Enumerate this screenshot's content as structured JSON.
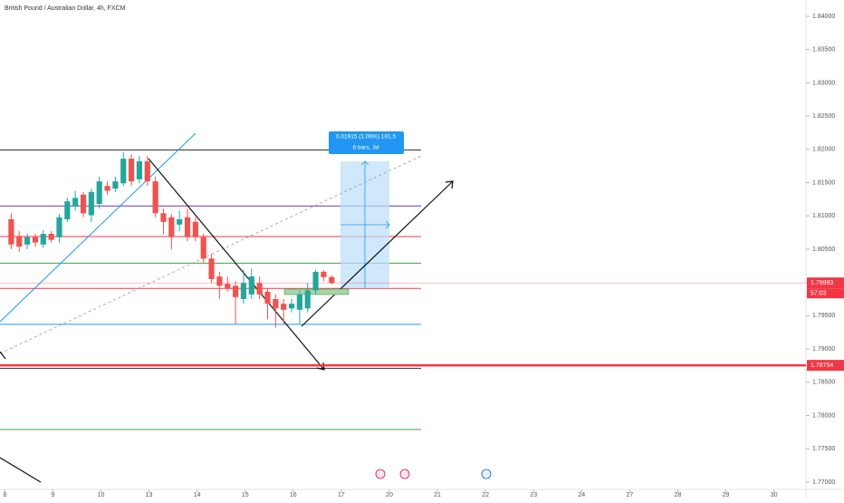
{
  "chart_data": {
    "type": "candlestick",
    "title": "British Pound / Australian Dollar, 4h, FXCM",
    "up_color": "#26a69a",
    "down_color": "#ef5350",
    "open": [
      1.8095,
      1.807,
      1.8057,
      1.8068,
      1.8057,
      1.8073,
      1.8068,
      1.8095,
      1.8114,
      1.8132,
      1.8101,
      1.8118,
      1.8145,
      1.8141,
      1.8149,
      1.8186,
      1.8155,
      1.8182,
      1.8152,
      1.8104,
      1.8098,
      1.8087,
      1.8098,
      1.8091,
      1.8068,
      1.8036,
      1.8009,
      1.7998,
      1.7995,
      1.7975,
      1.7982,
      1.7999,
      1.7986,
      1.7975,
      1.7968,
      1.7961,
      1.7959,
      1.7961,
      1.7988,
      1.8016,
      1.8008
    ],
    "high": [
      1.8104,
      1.8077,
      1.8073,
      1.8073,
      1.8079,
      1.8077,
      1.8103,
      1.8127,
      1.8138,
      1.8136,
      1.8141,
      1.8159,
      1.8152,
      1.8159,
      1.8196,
      1.8193,
      1.819,
      1.819,
      1.8159,
      1.8111,
      1.8103,
      1.8108,
      1.8111,
      1.8098,
      1.8073,
      1.8043,
      1.8016,
      1.8009,
      1.8002,
      1.8019,
      1.8021,
      1.8009,
      1.7991,
      1.7982,
      1.7975,
      1.7975,
      1.7988,
      1.7999,
      1.8019,
      1.8019,
      1.8011
    ],
    "low": [
      1.805,
      1.8046,
      1.805,
      1.8054,
      1.8052,
      1.806,
      1.806,
      1.8091,
      1.8108,
      1.8098,
      1.8091,
      1.8111,
      1.8132,
      1.8136,
      1.8145,
      1.8145,
      1.8149,
      1.8145,
      1.8098,
      1.8073,
      1.805,
      1.8077,
      1.8062,
      1.8062,
      1.803,
      1.7999,
      1.7975,
      1.7986,
      1.7937,
      1.7968,
      1.7975,
      1.7975,
      1.7945,
      1.7932,
      1.7937,
      1.7955,
      1.7937,
      1.7955,
      1.7982,
      1.8002,
      1.7997
    ],
    "close": [
      1.8057,
      1.8054,
      1.8068,
      1.806,
      1.8073,
      1.8064,
      1.8098,
      1.8122,
      1.8127,
      1.8104,
      1.8136,
      1.8152,
      1.8138,
      1.8152,
      1.8186,
      1.8152,
      1.8182,
      1.8152,
      1.8104,
      1.8091,
      1.8068,
      1.8095,
      1.8068,
      1.8068,
      1.8036,
      1.8005,
      1.7995,
      1.7991,
      1.7978,
      1.7999,
      1.8009,
      1.7982,
      1.7968,
      1.7961,
      1.7959,
      1.7968,
      1.7982,
      1.7988,
      1.8016,
      1.8008,
      1.7999
    ],
    "xlim": [
      -1.4,
      99.2
    ],
    "xticks": [
      {
        "value": -0.8,
        "label": "8"
      },
      {
        "value": 5.2,
        "label": "9"
      },
      {
        "value": 11.2,
        "label": "10"
      },
      {
        "value": 17.2,
        "label": "13"
      },
      {
        "value": 23.2,
        "label": "14"
      },
      {
        "value": 29.2,
        "label": "15"
      },
      {
        "value": 35.2,
        "label": "16"
      },
      {
        "value": 41.2,
        "label": "17"
      },
      {
        "value": 47.2,
        "label": "20"
      },
      {
        "value": 53.2,
        "label": "21"
      },
      {
        "value": 59.2,
        "label": "22"
      },
      {
        "value": 65.2,
        "label": "23"
      },
      {
        "value": 71.2,
        "label": "24"
      },
      {
        "value": 77.2,
        "label": "27"
      },
      {
        "value": 83.2,
        "label": "28"
      },
      {
        "value": 89.2,
        "label": "29"
      },
      {
        "value": 95.2,
        "label": "30"
      }
    ],
    "ylim": [
      1.7689,
      1.84245
    ],
    "yticks": [
      {
        "value": 1.84,
        "label": "1.84000"
      },
      {
        "value": 1.835,
        "label": "1.83500"
      },
      {
        "value": 1.83,
        "label": "1.83000"
      },
      {
        "value": 1.825,
        "label": "1.82500"
      },
      {
        "value": 1.82,
        "label": "1.82000"
      },
      {
        "value": 1.815,
        "label": "1.81500"
      },
      {
        "value": 1.81,
        "label": "1.81000"
      },
      {
        "value": 1.805,
        "label": "1.80500"
      },
      {
        "value": 1.8,
        "label": "1.80000"
      },
      {
        "value": 1.795,
        "label": "1.79500"
      },
      {
        "value": 1.79,
        "label": "1.79000"
      },
      {
        "value": 1.785,
        "label": "1.78500"
      },
      {
        "value": 1.78,
        "label": "1.78000"
      },
      {
        "value": 1.775,
        "label": "1.77500"
      },
      {
        "value": 1.77,
        "label": "1.77000"
      }
    ],
    "levels": [
      {
        "price": 1.8199,
        "color": "#333333"
      },
      {
        "price": 1.8115,
        "color": "#673ab7"
      },
      {
        "price": 1.8069,
        "color": "#f23645"
      },
      {
        "price": 1.8029,
        "color": "#43a047"
      },
      {
        "price": 1.7991,
        "color": "#f23645"
      },
      {
        "price": 1.7937,
        "color": "#2196f3"
      },
      {
        "price": 1.7871,
        "color": "#333333"
      },
      {
        "price": 1.7779,
        "color": "#43a047"
      }
    ],
    "price_labels": [
      1.79993,
      1.78754
    ],
    "price_label_color": "#f23645",
    "countdown": "57:03",
    "measure": {
      "text": "0.01915 (1.06%) 191.5",
      "subtext": "6 bars, 3d"
    }
  }
}
